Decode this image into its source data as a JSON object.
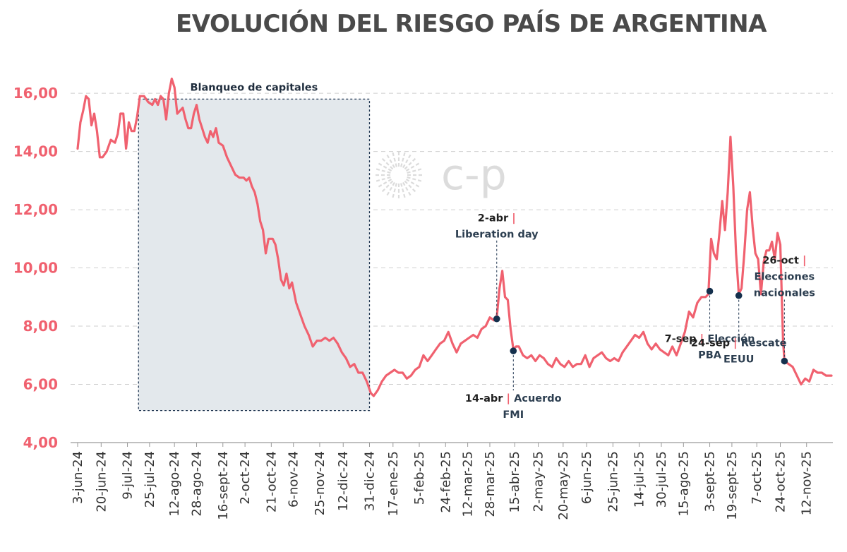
{
  "chart_data": {
    "type": "line",
    "title": "EVOLUCIÓN DEL RIESGO PAÍS DE ARGENTINA",
    "watermark": "c-p",
    "line_color": "#f0616f",
    "ylim": [
      4,
      16.9
    ],
    "yticks": [
      "4,00",
      "6,00",
      "8,00",
      "10,00",
      "12,00",
      "14,00",
      "16,00"
    ],
    "ytick_values": [
      4,
      6,
      8,
      10,
      12,
      14,
      16
    ],
    "grid": "horizontal dashed",
    "x_start": "2024-06-03",
    "x_end": "2025-11-30",
    "xticks": [
      "3-jun-24",
      "20-jun-24",
      "9-jul-24",
      "25-jul-24",
      "12-ago-24",
      "28-ago-24",
      "16-sept-24",
      "2-oct-24",
      "21-oct-24",
      "6-nov-24",
      "25-nov-24",
      "12-dic-24",
      "31-dic-24",
      "17-ene-25",
      "5-feb-25",
      "24-feb-25",
      "12-mar-25",
      "28-mar-25",
      "15-abr-25",
      "2-may-25",
      "20-may-25",
      "6-jun-25",
      "25-jun-25",
      "14-jul-25",
      "30-jul-25",
      "15-ago-25",
      "3-sept-25",
      "19-sept-25",
      "7-oct-25",
      "24-oct-25",
      "12-nov-25"
    ],
    "xtick_dates": [
      "2024-06-03",
      "2024-06-20",
      "2024-07-09",
      "2024-07-25",
      "2024-08-12",
      "2024-08-28",
      "2024-09-16",
      "2024-10-02",
      "2024-10-21",
      "2024-11-06",
      "2024-11-25",
      "2024-12-12",
      "2024-12-31",
      "2025-01-17",
      "2025-02-05",
      "2025-02-24",
      "2025-03-12",
      "2025-03-28",
      "2025-04-15",
      "2025-05-02",
      "2025-05-20",
      "2025-06-06",
      "2025-06-25",
      "2025-07-14",
      "2025-07-30",
      "2025-08-15",
      "2025-09-03",
      "2025-09-19",
      "2025-10-07",
      "2025-10-24",
      "2025-11-12"
    ],
    "series": [
      {
        "points": [
          [
            "2024-06-03",
            14.1
          ],
          [
            "2024-06-05",
            15.0
          ],
          [
            "2024-06-07",
            15.4
          ],
          [
            "2024-06-09",
            15.9
          ],
          [
            "2024-06-11",
            15.8
          ],
          [
            "2024-06-13",
            14.9
          ],
          [
            "2024-06-15",
            15.3
          ],
          [
            "2024-06-17",
            14.7
          ],
          [
            "2024-06-19",
            13.8
          ],
          [
            "2024-06-21",
            13.8
          ],
          [
            "2024-06-24",
            14.0
          ],
          [
            "2024-06-27",
            14.4
          ],
          [
            "2024-06-30",
            14.3
          ],
          [
            "2024-07-02",
            14.6
          ],
          [
            "2024-07-04",
            15.3
          ],
          [
            "2024-07-06",
            15.3
          ],
          [
            "2024-07-08",
            14.1
          ],
          [
            "2024-07-10",
            15.0
          ],
          [
            "2024-07-12",
            14.7
          ],
          [
            "2024-07-14",
            14.7
          ],
          [
            "2024-07-16",
            15.2
          ],
          [
            "2024-07-18",
            15.9
          ],
          [
            "2024-07-21",
            15.9
          ],
          [
            "2024-07-24",
            15.7
          ],
          [
            "2024-07-27",
            15.6
          ],
          [
            "2024-07-29",
            15.8
          ],
          [
            "2024-07-31",
            15.6
          ],
          [
            "2024-08-02",
            15.9
          ],
          [
            "2024-08-04",
            15.8
          ],
          [
            "2024-08-06",
            15.1
          ],
          [
            "2024-08-08",
            16.0
          ],
          [
            "2024-08-10",
            16.5
          ],
          [
            "2024-08-12",
            16.2
          ],
          [
            "2024-08-14",
            15.3
          ],
          [
            "2024-08-16",
            15.4
          ],
          [
            "2024-08-18",
            15.5
          ],
          [
            "2024-08-20",
            15.1
          ],
          [
            "2024-08-22",
            14.8
          ],
          [
            "2024-08-24",
            14.8
          ],
          [
            "2024-08-26",
            15.3
          ],
          [
            "2024-08-28",
            15.6
          ],
          [
            "2024-08-30",
            15.1
          ],
          [
            "2024-09-01",
            14.8
          ],
          [
            "2024-09-03",
            14.5
          ],
          [
            "2024-09-05",
            14.3
          ],
          [
            "2024-09-07",
            14.7
          ],
          [
            "2024-09-09",
            14.5
          ],
          [
            "2024-09-11",
            14.8
          ],
          [
            "2024-09-13",
            14.3
          ],
          [
            "2024-09-16",
            14.2
          ],
          [
            "2024-09-19",
            13.8
          ],
          [
            "2024-09-22",
            13.5
          ],
          [
            "2024-09-25",
            13.2
          ],
          [
            "2024-09-28",
            13.1
          ],
          [
            "2024-10-01",
            13.1
          ],
          [
            "2024-10-03",
            13.0
          ],
          [
            "2024-10-05",
            13.1
          ],
          [
            "2024-10-07",
            12.8
          ],
          [
            "2024-10-09",
            12.6
          ],
          [
            "2024-10-11",
            12.2
          ],
          [
            "2024-10-13",
            11.6
          ],
          [
            "2024-10-15",
            11.3
          ],
          [
            "2024-10-17",
            10.5
          ],
          [
            "2024-10-19",
            11.0
          ],
          [
            "2024-10-22",
            11.0
          ],
          [
            "2024-10-24",
            10.8
          ],
          [
            "2024-10-26",
            10.3
          ],
          [
            "2024-10-28",
            9.6
          ],
          [
            "2024-10-30",
            9.4
          ],
          [
            "2024-11-01",
            9.8
          ],
          [
            "2024-11-03",
            9.3
          ],
          [
            "2024-11-05",
            9.5
          ],
          [
            "2024-11-08",
            8.8
          ],
          [
            "2024-11-11",
            8.4
          ],
          [
            "2024-11-14",
            8.0
          ],
          [
            "2024-11-17",
            7.7
          ],
          [
            "2024-11-20",
            7.3
          ],
          [
            "2024-11-23",
            7.5
          ],
          [
            "2024-11-26",
            7.5
          ],
          [
            "2024-11-29",
            7.6
          ],
          [
            "2024-12-02",
            7.5
          ],
          [
            "2024-12-05",
            7.6
          ],
          [
            "2024-12-08",
            7.4
          ],
          [
            "2024-12-11",
            7.1
          ],
          [
            "2024-12-14",
            6.9
          ],
          [
            "2024-12-17",
            6.6
          ],
          [
            "2024-12-20",
            6.7
          ],
          [
            "2024-12-23",
            6.4
          ],
          [
            "2024-12-26",
            6.4
          ],
          [
            "2024-12-29",
            6.1
          ],
          [
            "2025-01-01",
            5.7
          ],
          [
            "2025-01-03",
            5.6
          ],
          [
            "2025-01-06",
            5.8
          ],
          [
            "2025-01-09",
            6.1
          ],
          [
            "2025-01-12",
            6.3
          ],
          [
            "2025-01-15",
            6.4
          ],
          [
            "2025-01-18",
            6.5
          ],
          [
            "2025-01-21",
            6.4
          ],
          [
            "2025-01-24",
            6.4
          ],
          [
            "2025-01-27",
            6.2
          ],
          [
            "2025-01-30",
            6.3
          ],
          [
            "2025-02-02",
            6.5
          ],
          [
            "2025-02-05",
            6.6
          ],
          [
            "2025-02-08",
            7.0
          ],
          [
            "2025-02-11",
            6.8
          ],
          [
            "2025-02-14",
            7.0
          ],
          [
            "2025-02-17",
            7.2
          ],
          [
            "2025-02-20",
            7.4
          ],
          [
            "2025-02-23",
            7.5
          ],
          [
            "2025-02-26",
            7.8
          ],
          [
            "2025-03-01",
            7.4
          ],
          [
            "2025-03-04",
            7.1
          ],
          [
            "2025-03-07",
            7.4
          ],
          [
            "2025-03-10",
            7.5
          ],
          [
            "2025-03-13",
            7.6
          ],
          [
            "2025-03-16",
            7.7
          ],
          [
            "2025-03-19",
            7.6
          ],
          [
            "2025-03-22",
            7.9
          ],
          [
            "2025-03-25",
            8.0
          ],
          [
            "2025-03-28",
            8.3
          ],
          [
            "2025-03-31",
            8.2
          ],
          [
            "2025-04-02",
            8.3
          ],
          [
            "2025-04-04",
            9.3
          ],
          [
            "2025-04-06",
            9.9
          ],
          [
            "2025-04-08",
            9.0
          ],
          [
            "2025-04-10",
            8.9
          ],
          [
            "2025-04-12",
            7.9
          ],
          [
            "2025-04-14",
            7.2
          ],
          [
            "2025-04-16",
            7.3
          ],
          [
            "2025-04-18",
            7.3
          ],
          [
            "2025-04-21",
            7.0
          ],
          [
            "2025-04-24",
            6.9
          ],
          [
            "2025-04-27",
            7.0
          ],
          [
            "2025-04-30",
            6.8
          ],
          [
            "2025-05-03",
            7.0
          ],
          [
            "2025-05-06",
            6.9
          ],
          [
            "2025-05-09",
            6.7
          ],
          [
            "2025-05-12",
            6.6
          ],
          [
            "2025-05-15",
            6.9
          ],
          [
            "2025-05-18",
            6.7
          ],
          [
            "2025-05-21",
            6.6
          ],
          [
            "2025-05-24",
            6.8
          ],
          [
            "2025-05-27",
            6.6
          ],
          [
            "2025-05-30",
            6.7
          ],
          [
            "2025-06-02",
            6.7
          ],
          [
            "2025-06-05",
            7.0
          ],
          [
            "2025-06-08",
            6.6
          ],
          [
            "2025-06-11",
            6.9
          ],
          [
            "2025-06-14",
            7.0
          ],
          [
            "2025-06-17",
            7.1
          ],
          [
            "2025-06-20",
            6.9
          ],
          [
            "2025-06-23",
            6.8
          ],
          [
            "2025-06-26",
            6.9
          ],
          [
            "2025-06-29",
            6.8
          ],
          [
            "2025-07-02",
            7.1
          ],
          [
            "2025-07-05",
            7.3
          ],
          [
            "2025-07-08",
            7.5
          ],
          [
            "2025-07-11",
            7.7
          ],
          [
            "2025-07-14",
            7.6
          ],
          [
            "2025-07-17",
            7.8
          ],
          [
            "2025-07-20",
            7.4
          ],
          [
            "2025-07-23",
            7.2
          ],
          [
            "2025-07-26",
            7.4
          ],
          [
            "2025-07-29",
            7.2
          ],
          [
            "2025-08-01",
            7.1
          ],
          [
            "2025-08-04",
            7.0
          ],
          [
            "2025-08-07",
            7.3
          ],
          [
            "2025-08-10",
            7.0
          ],
          [
            "2025-08-13",
            7.4
          ],
          [
            "2025-08-16",
            7.8
          ],
          [
            "2025-08-19",
            8.5
          ],
          [
            "2025-08-22",
            8.3
          ],
          [
            "2025-08-25",
            8.8
          ],
          [
            "2025-08-28",
            9.0
          ],
          [
            "2025-08-31",
            9.0
          ],
          [
            "2025-09-02",
            9.1
          ],
          [
            "2025-09-04",
            11.0
          ],
          [
            "2025-09-06",
            10.5
          ],
          [
            "2025-09-08",
            10.3
          ],
          [
            "2025-09-10",
            11.2
          ],
          [
            "2025-09-12",
            12.3
          ],
          [
            "2025-09-14",
            11.3
          ],
          [
            "2025-09-16",
            12.6
          ],
          [
            "2025-09-18",
            14.5
          ],
          [
            "2025-09-20",
            12.8
          ],
          [
            "2025-09-22",
            10.5
          ],
          [
            "2025-09-24",
            9.1
          ],
          [
            "2025-09-26",
            9.3
          ],
          [
            "2025-09-28",
            10.5
          ],
          [
            "2025-09-30",
            12.0
          ],
          [
            "2025-10-02",
            12.6
          ],
          [
            "2025-10-04",
            11.4
          ],
          [
            "2025-10-06",
            10.5
          ],
          [
            "2025-10-08",
            10.3
          ],
          [
            "2025-10-10",
            9.1
          ],
          [
            "2025-10-12",
            10.2
          ],
          [
            "2025-10-14",
            10.6
          ],
          [
            "2025-10-16",
            10.6
          ],
          [
            "2025-10-18",
            10.9
          ],
          [
            "2025-10-20",
            10.3
          ],
          [
            "2025-10-22",
            11.2
          ],
          [
            "2025-10-24",
            10.8
          ],
          [
            "2025-10-26",
            7.5
          ],
          [
            "2025-10-27",
            6.8
          ],
          [
            "2025-10-30",
            6.7
          ],
          [
            "2025-11-02",
            6.6
          ],
          [
            "2025-11-05",
            6.3
          ],
          [
            "2025-11-08",
            6.0
          ],
          [
            "2025-11-11",
            6.2
          ],
          [
            "2025-11-14",
            6.1
          ],
          [
            "2025-11-17",
            6.5
          ],
          [
            "2025-11-20",
            6.4
          ],
          [
            "2025-11-23",
            6.4
          ],
          [
            "2025-11-26",
            6.3
          ],
          [
            "2025-11-30",
            6.3
          ]
        ]
      }
    ],
    "shaded_region": {
      "label": "Blanqueo de capitales",
      "start": "2024-07-17",
      "end": "2024-12-31",
      "ylim": [
        5.1,
        15.8
      ]
    },
    "annotations": [
      {
        "date_label": "2-abr",
        "label_lines": [
          "Liberation day"
        ],
        "date": "2025-04-02",
        "value": 8.25,
        "text_position": "above"
      },
      {
        "date_label": "14-abr",
        "label_lines": [
          "Acuerdo",
          "FMI"
        ],
        "date": "2025-04-14",
        "value": 7.15,
        "text_position": "below"
      },
      {
        "date_label": "7-sep",
        "label_lines": [
          "Elección",
          "PBA"
        ],
        "date": "2025-09-03",
        "value": 9.2,
        "text_position": "below"
      },
      {
        "date_label": "24-sep",
        "label_lines": [
          "Rescate",
          "EEUU"
        ],
        "date": "2025-09-24",
        "value": 9.05,
        "text_position": "below"
      },
      {
        "date_label": "26-oct",
        "label_lines": [
          "Elecciones",
          "nacionales"
        ],
        "date": "2025-10-27",
        "value": 6.8,
        "text_position": "above"
      }
    ]
  }
}
